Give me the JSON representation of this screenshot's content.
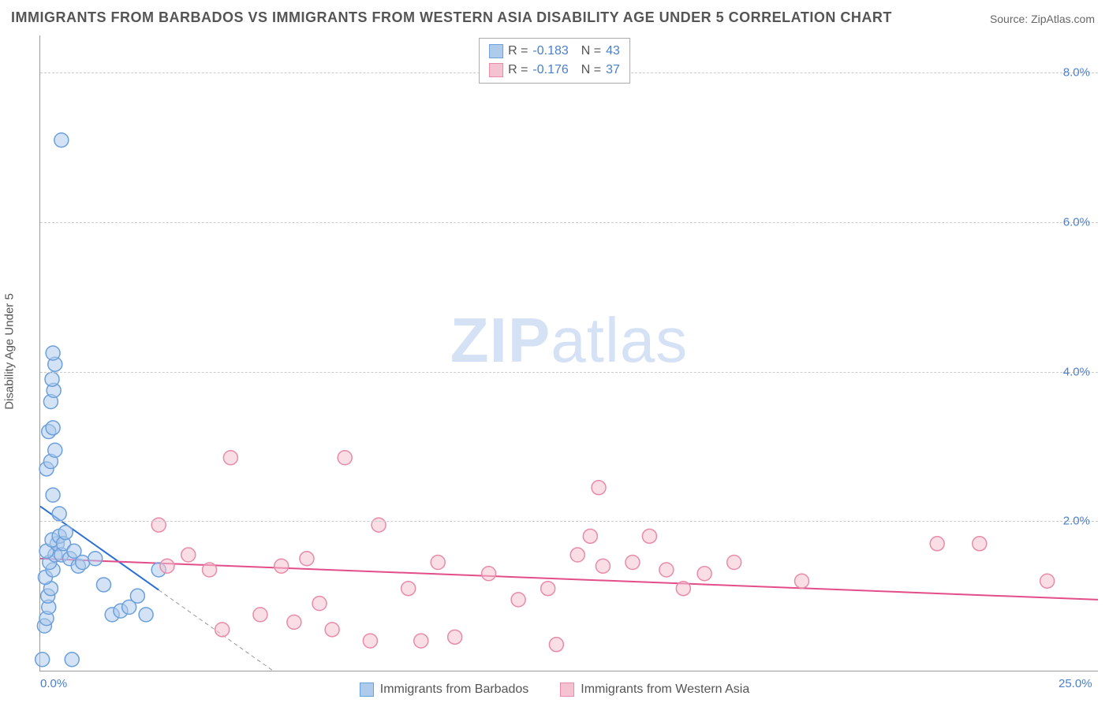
{
  "title": "IMMIGRANTS FROM BARBADOS VS IMMIGRANTS FROM WESTERN ASIA DISABILITY AGE UNDER 5 CORRELATION CHART",
  "source": "Source: ZipAtlas.com",
  "watermark_zip": "ZIP",
  "watermark_atlas": "atlas",
  "y_axis_label": "Disability Age Under 5",
  "chart": {
    "type": "scatter",
    "xlim": [
      0,
      25
    ],
    "ylim": [
      0,
      8.5
    ],
    "xticks": [
      {
        "value": 0,
        "label": "0.0%"
      },
      {
        "value": 25,
        "label": "25.0%"
      }
    ],
    "yticks": [
      {
        "value": 2,
        "label": "2.0%"
      },
      {
        "value": 4,
        "label": "4.0%"
      },
      {
        "value": 6,
        "label": "6.0%"
      },
      {
        "value": 8,
        "label": "8.0%"
      }
    ],
    "background_color": "#ffffff",
    "grid_color": "#cccccc",
    "marker_radius": 9,
    "marker_stroke_width": 1.5,
    "series": [
      {
        "name": "Immigrants from Barbados",
        "fill_color": "#aecbeb",
        "stroke_color": "#6ca0dc",
        "fill_opacity": 0.55,
        "correlation_R": "-0.183",
        "correlation_N": "43",
        "trend_line": {
          "x1": 0,
          "y1": 2.2,
          "x2": 5.5,
          "y2": 0,
          "color": "#2a6fd6",
          "width": 2,
          "dash_after_x": 2.8
        },
        "points": [
          [
            0.05,
            0.15
          ],
          [
            0.1,
            0.6
          ],
          [
            0.15,
            0.7
          ],
          [
            0.2,
            0.85
          ],
          [
            0.18,
            1.0
          ],
          [
            0.25,
            1.1
          ],
          [
            0.12,
            1.25
          ],
          [
            0.3,
            1.35
          ],
          [
            0.22,
            1.45
          ],
          [
            0.35,
            1.55
          ],
          [
            0.15,
            1.6
          ],
          [
            0.4,
            1.7
          ],
          [
            0.28,
            1.75
          ],
          [
            0.45,
            1.8
          ],
          [
            0.5,
            1.55
          ],
          [
            0.55,
            1.7
          ],
          [
            0.6,
            1.85
          ],
          [
            0.7,
            1.5
          ],
          [
            0.8,
            1.6
          ],
          [
            0.9,
            1.4
          ],
          [
            1.0,
            1.45
          ],
          [
            0.45,
            2.1
          ],
          [
            0.3,
            2.35
          ],
          [
            0.15,
            2.7
          ],
          [
            0.25,
            2.8
          ],
          [
            0.35,
            2.95
          ],
          [
            0.2,
            3.2
          ],
          [
            0.3,
            3.25
          ],
          [
            0.25,
            3.6
          ],
          [
            0.32,
            3.75
          ],
          [
            0.28,
            3.9
          ],
          [
            0.35,
            4.1
          ],
          [
            0.3,
            4.25
          ],
          [
            0.75,
            0.15
          ],
          [
            0.5,
            7.1
          ],
          [
            1.3,
            1.5
          ],
          [
            1.5,
            1.15
          ],
          [
            1.7,
            0.75
          ],
          [
            1.9,
            0.8
          ],
          [
            2.1,
            0.85
          ],
          [
            2.3,
            1.0
          ],
          [
            2.5,
            0.75
          ],
          [
            2.8,
            1.35
          ]
        ]
      },
      {
        "name": "Immigrants from Western Asia",
        "fill_color": "#f4c2d0",
        "stroke_color": "#e88ba8",
        "fill_opacity": 0.55,
        "correlation_R": "-0.176",
        "correlation_N": "37",
        "trend_line": {
          "x1": 0,
          "y1": 1.5,
          "x2": 25,
          "y2": 0.95,
          "color": "#e24d8a",
          "width": 2
        },
        "points": [
          [
            2.8,
            1.95
          ],
          [
            3.0,
            1.4
          ],
          [
            3.5,
            1.55
          ],
          [
            4.0,
            1.35
          ],
          [
            4.3,
            0.55
          ],
          [
            4.5,
            2.85
          ],
          [
            5.2,
            0.75
          ],
          [
            5.7,
            1.4
          ],
          [
            6.0,
            0.65
          ],
          [
            6.3,
            1.5
          ],
          [
            6.6,
            0.9
          ],
          [
            6.9,
            0.55
          ],
          [
            7.2,
            2.85
          ],
          [
            7.8,
            0.4
          ],
          [
            8.0,
            1.95
          ],
          [
            8.7,
            1.1
          ],
          [
            9.0,
            0.4
          ],
          [
            9.4,
            1.45
          ],
          [
            9.8,
            0.45
          ],
          [
            10.6,
            1.3
          ],
          [
            11.3,
            0.95
          ],
          [
            12.0,
            1.1
          ],
          [
            12.2,
            0.35
          ],
          [
            12.7,
            1.55
          ],
          [
            13.0,
            1.8
          ],
          [
            13.2,
            2.45
          ],
          [
            13.3,
            1.4
          ],
          [
            14.0,
            1.45
          ],
          [
            14.4,
            1.8
          ],
          [
            14.8,
            1.35
          ],
          [
            15.2,
            1.1
          ],
          [
            15.7,
            1.3
          ],
          [
            16.4,
            1.45
          ],
          [
            18.0,
            1.2
          ],
          [
            21.2,
            1.7
          ],
          [
            22.2,
            1.7
          ],
          [
            23.8,
            1.2
          ]
        ]
      }
    ]
  },
  "correlation_box": {
    "R_label": "R =",
    "N_label": "N ="
  },
  "legend_bottom": {
    "series1_label": "Immigrants from Barbados",
    "series2_label": "Immigrants from Western Asia"
  }
}
